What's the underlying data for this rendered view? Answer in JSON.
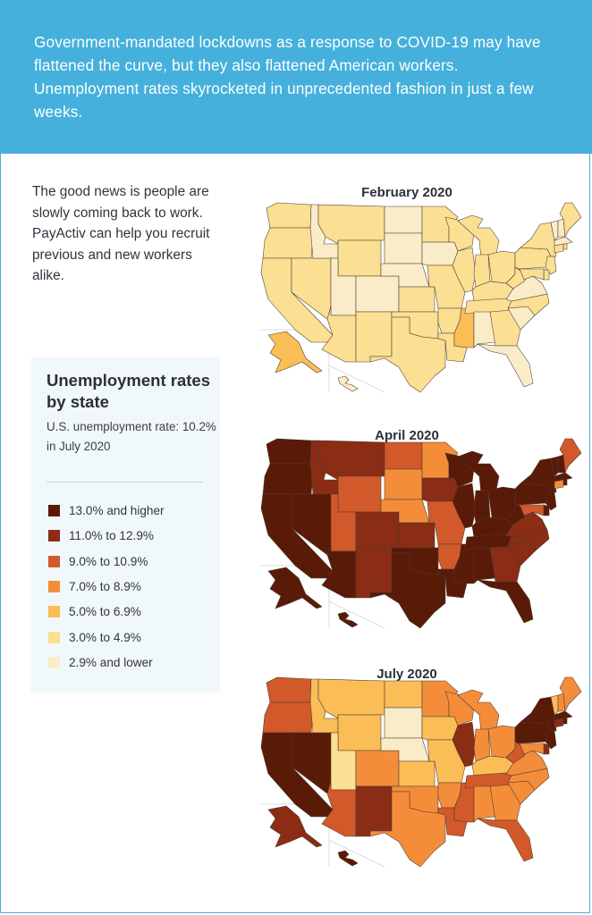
{
  "intro_banner": {
    "text": "Government-mandated lockdowns as a response to COVID-19 may have flattened the curve, but they also flattened American workers. Unemployment rates skyrocketed in unprecedented fashion in just a few weeks."
  },
  "good_news": {
    "text": "The good news is people are slowly coming back to work. PayActiv can help you recruit previous and new workers alike."
  },
  "legend": {
    "title": "Unemployment rates by state",
    "subtitle": "U.S. unemployment rate: 10.2% in July 2020",
    "items": [
      {
        "label": "13.0% and higher",
        "color": "#5a1a08"
      },
      {
        "label": "11.0% to 12.9%",
        "color": "#8a2d14"
      },
      {
        "label": "9.0% to 10.9%",
        "color": "#d2592a"
      },
      {
        "label": "7.0% to 8.9%",
        "color": "#f48d3a"
      },
      {
        "label": "5.0% to 6.9%",
        "color": "#fbbd55"
      },
      {
        "label": "3.0% to 4.9%",
        "color": "#fbdf92"
      },
      {
        "label": "2.9% and lower",
        "color": "#faecc8"
      }
    ]
  },
  "chart_data": [
    {
      "type": "choropleth",
      "title": "February 2020",
      "classes": {
        "ND": 6,
        "SD": 6,
        "NE": 6,
        "IA": 6,
        "UT": 6,
        "CO": 6,
        "ID": 6,
        "VT": 6,
        "NH": 6,
        "MA": 6,
        "AL": 6,
        "SC": 6,
        "GA": 5,
        "FL": 6,
        "VA": 6,
        "WI": 5,
        "WA": 5,
        "OR": 5,
        "CA": 5,
        "NV": 5,
        "AZ": 5,
        "NM": 5,
        "TX": 5,
        "OK": 5,
        "KS": 5,
        "MN": 5,
        "MO": 5,
        "AR": 5,
        "LA": 5,
        "MS": 4,
        "TN": 5,
        "KY": 5,
        "IL": 5,
        "IN": 5,
        "MI": 5,
        "OH": 5,
        "PA": 5,
        "WV": 5,
        "NC": 5,
        "NY": 5,
        "ME": 5,
        "MT": 5,
        "WY": 5,
        "NJ": 5,
        "DE": 5,
        "MD": 5,
        "CT": 5,
        "RI": 5,
        "AK": 4,
        "HI": 6
      }
    },
    {
      "type": "choropleth",
      "title": "April 2020",
      "classes": {
        "WA": 0,
        "OR": 0,
        "CA": 0,
        "NV": 0,
        "ID": 1,
        "MT": 1,
        "WY": 2,
        "UT": 2,
        "CO": 1,
        "AZ": 0,
        "NM": 1,
        "ND": 2,
        "SD": 3,
        "NE": 3,
        "KS": 1,
        "OK": 0,
        "TX": 0,
        "MN": 3,
        "IA": 1,
        "MO": 2,
        "AR": 2,
        "LA": 0,
        "WI": 0,
        "IL": 0,
        "MS": 0,
        "MI": 0,
        "IN": 0,
        "OH": 0,
        "KY": 0,
        "TN": 0,
        "AL": 0,
        "GA": 1,
        "FL": 0,
        "SC": 1,
        "NC": 1,
        "VA": 1,
        "WV": 0,
        "PA": 0,
        "NY": 0,
        "VT": 0,
        "NH": 0,
        "ME": 2,
        "MA": 0,
        "CT": 3,
        "RI": 0,
        "NJ": 0,
        "DE": 0,
        "MD": 2,
        "AK": 0,
        "HI": 0
      }
    },
    {
      "type": "choropleth",
      "title": "July 2020",
      "classes": {
        "WA": 2,
        "OR": 2,
        "CA": 0,
        "NV": 0,
        "ID": 4,
        "MT": 4,
        "WY": 4,
        "UT": 5,
        "CO": 3,
        "AZ": 2,
        "NM": 1,
        "ND": 4,
        "SD": 6,
        "NE": 6,
        "KS": 4,
        "OK": 3,
        "TX": 3,
        "MN": 3,
        "IA": 4,
        "MO": 4,
        "AR": 3,
        "LA": 2,
        "WI": 3,
        "IL": 1,
        "MS": 2,
        "MI": 3,
        "IN": 3,
        "OH": 3,
        "KY": 4,
        "TN": 2,
        "AL": 3,
        "GA": 3,
        "FL": 2,
        "SC": 3,
        "NC": 3,
        "VA": 3,
        "WV": 2,
        "PA": 0,
        "NY": 0,
        "VT": 4,
        "NH": 3,
        "ME": 3,
        "MA": 0,
        "CT": 1,
        "RI": 0,
        "NJ": 0,
        "DE": 1,
        "MD": 3,
        "AK": 1,
        "HI": 0
      }
    }
  ]
}
